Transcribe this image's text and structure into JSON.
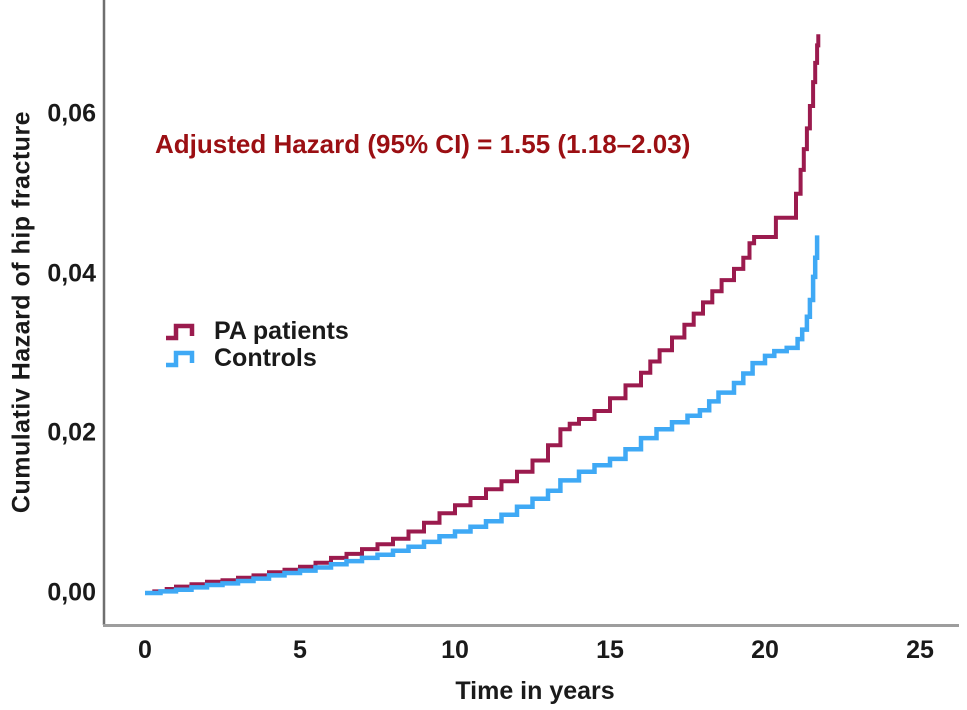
{
  "annotation": {
    "text": "Adjusted Hazard (95% CI) = 1.55 (1.18–2.03)",
    "color": "#9b0f13"
  },
  "legend": {
    "items": [
      {
        "label": "PA patients",
        "color": "#9b1b4e"
      },
      {
        "label": "Controls",
        "color": "#3fa9f5"
      }
    ]
  },
  "chart_data": {
    "type": "line",
    "subtype": "cumulative-hazard step curves (step-after)",
    "title": "",
    "xlabel": "Time in years",
    "ylabel": "Cumulativ Hazard of hip fracture",
    "xlim": [
      0,
      26.3
    ],
    "ylim": [
      0,
      0.074
    ],
    "grid": false,
    "legend_position": "inside-left-middle",
    "x_tick_values": [
      0,
      5,
      10,
      15,
      20,
      25
    ],
    "x_tick_labels": [
      "0",
      "5",
      "10",
      "15",
      "20",
      "25"
    ],
    "y_tick_values": [
      0,
      0.02,
      0.04,
      0.06
    ],
    "y_tick_labels": [
      "0,00",
      "0,02",
      "0,04",
      "0,06"
    ],
    "decimal_style_axis": "comma",
    "annotation_text": "Adjusted Hazard (95% CI) = 1.55 (1.18–2.03)",
    "series": [
      {
        "name": "PA patients",
        "color": "#9b1b4e",
        "stroke_width": 4,
        "points": [
          [
            0,
            0
          ],
          [
            0.3,
            0.0002
          ],
          [
            0.7,
            0.0005
          ],
          [
            1,
            0.0008
          ],
          [
            1.5,
            0.0011
          ],
          [
            2,
            0.0014
          ],
          [
            2.5,
            0.0016
          ],
          [
            3,
            0.0019
          ],
          [
            3.5,
            0.0022
          ],
          [
            4,
            0.0026
          ],
          [
            4.5,
            0.0029
          ],
          [
            5,
            0.0033
          ],
          [
            5.5,
            0.0038
          ],
          [
            6,
            0.0044
          ],
          [
            6.5,
            0.0049
          ],
          [
            7,
            0.0055
          ],
          [
            7.5,
            0.0061
          ],
          [
            8,
            0.0068
          ],
          [
            8.5,
            0.0077
          ],
          [
            9,
            0.0088
          ],
          [
            9.5,
            0.01
          ],
          [
            10,
            0.011
          ],
          [
            10.5,
            0.0119
          ],
          [
            11,
            0.013
          ],
          [
            11.5,
            0.014
          ],
          [
            12,
            0.0152
          ],
          [
            12.5,
            0.0166
          ],
          [
            13,
            0.0185
          ],
          [
            13.4,
            0.0205
          ],
          [
            13.7,
            0.0212
          ],
          [
            14,
            0.0218
          ],
          [
            14.5,
            0.0228
          ],
          [
            15,
            0.0244
          ],
          [
            15.5,
            0.026
          ],
          [
            16,
            0.0276
          ],
          [
            16.3,
            0.029
          ],
          [
            16.6,
            0.0304
          ],
          [
            17,
            0.032
          ],
          [
            17.4,
            0.0336
          ],
          [
            17.7,
            0.035
          ],
          [
            18,
            0.0364
          ],
          [
            18.3,
            0.0378
          ],
          [
            18.6,
            0.0392
          ],
          [
            19,
            0.0406
          ],
          [
            19.3,
            0.042
          ],
          [
            19.5,
            0.0438
          ],
          [
            19.65,
            0.0446
          ],
          [
            20.25,
            0.0446
          ],
          [
            20.35,
            0.047
          ],
          [
            20.9,
            0.047
          ],
          [
            21,
            0.05
          ],
          [
            21.15,
            0.053
          ],
          [
            21.25,
            0.0556
          ],
          [
            21.35,
            0.0582
          ],
          [
            21.45,
            0.061
          ],
          [
            21.55,
            0.064
          ],
          [
            21.62,
            0.0664
          ],
          [
            21.68,
            0.0686
          ],
          [
            21.72,
            0.07
          ]
        ]
      },
      {
        "name": "Controls",
        "color": "#3fa9f5",
        "stroke_width": 4.5,
        "points": [
          [
            0,
            0
          ],
          [
            0.5,
            0.0002
          ],
          [
            1,
            0.0004
          ],
          [
            1.5,
            0.0007
          ],
          [
            2,
            0.001
          ],
          [
            2.5,
            0.0012
          ],
          [
            3,
            0.0015
          ],
          [
            3.5,
            0.0018
          ],
          [
            4,
            0.0022
          ],
          [
            4.5,
            0.0025
          ],
          [
            5,
            0.0028
          ],
          [
            5.5,
            0.0032
          ],
          [
            6,
            0.0036
          ],
          [
            6.5,
            0.004
          ],
          [
            7,
            0.0044
          ],
          [
            7.5,
            0.0048
          ],
          [
            8,
            0.0053
          ],
          [
            8.5,
            0.0058
          ],
          [
            9,
            0.0064
          ],
          [
            9.5,
            0.0071
          ],
          [
            10,
            0.0077
          ],
          [
            10.5,
            0.0083
          ],
          [
            11,
            0.009
          ],
          [
            11.5,
            0.0098
          ],
          [
            12,
            0.0108
          ],
          [
            12.5,
            0.0118
          ],
          [
            13,
            0.0128
          ],
          [
            13.4,
            0.0141
          ],
          [
            14,
            0.0152
          ],
          [
            14.5,
            0.016
          ],
          [
            15,
            0.0168
          ],
          [
            15.5,
            0.018
          ],
          [
            16,
            0.0194
          ],
          [
            16.5,
            0.0205
          ],
          [
            17,
            0.0214
          ],
          [
            17.5,
            0.0222
          ],
          [
            17.9,
            0.0229
          ],
          [
            18.2,
            0.024
          ],
          [
            18.5,
            0.0251
          ],
          [
            19,
            0.0263
          ],
          [
            19.3,
            0.0275
          ],
          [
            19.6,
            0.0288
          ],
          [
            20,
            0.0297
          ],
          [
            20.3,
            0.0303
          ],
          [
            20.7,
            0.0307
          ],
          [
            21.05,
            0.0318
          ],
          [
            21.2,
            0.033
          ],
          [
            21.35,
            0.0346
          ],
          [
            21.45,
            0.0367
          ],
          [
            21.55,
            0.0396
          ],
          [
            21.62,
            0.042
          ],
          [
            21.68,
            0.0448
          ]
        ]
      }
    ]
  }
}
